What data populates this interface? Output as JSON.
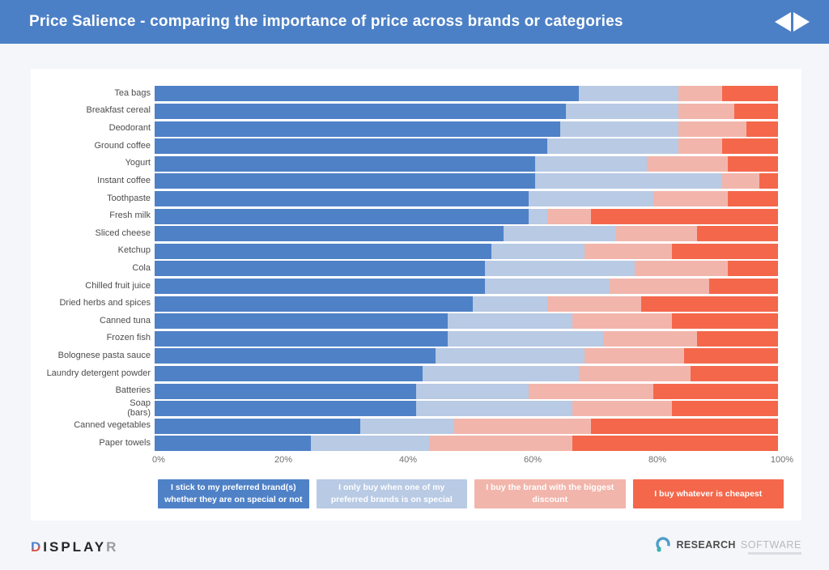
{
  "header": {
    "title": "Price Salience - comparing the importance of price across brands or categories",
    "nav": {
      "previous_icon": "triangle-left",
      "next_icon": "triangle-right"
    }
  },
  "colors": {
    "header_background": "#4c80c6",
    "page_background": "#f5f6fa",
    "card_background": "#ffffff",
    "tick_label": "#6f6f6f",
    "category_label": "#4d4d4d"
  },
  "chart_data": {
    "type": "bar",
    "orientation": "horizontal",
    "stacked": true,
    "units": "percent",
    "xlim": [
      0,
      100
    ],
    "x_ticks": [
      "0%",
      "20%",
      "40%",
      "60%",
      "80%",
      "100%"
    ],
    "grid": false,
    "legend_position": "bottom",
    "categories": [
      "Tea bags",
      "Breakfast cereal",
      "Deodorant",
      "Ground coffee",
      "Yogurt",
      "Instant coffee",
      "Toothpaste",
      "Fresh milk",
      "Sliced cheese",
      "Ketchup",
      "Cola",
      "Chilled fruit juice",
      "Dried herbs and spices",
      "Canned tuna",
      "Frozen fish",
      "Bolognese pasta sauce",
      "Laundry detergent powder",
      "Batteries",
      "Soap\n(bars)",
      "Canned vegetables",
      "Paper towels"
    ],
    "series": [
      {
        "name": "I stick to my preferred brand(s) whether they are on special or not",
        "color": "#4f81c7",
        "values": [
          68,
          66,
          65,
          63,
          61,
          61,
          60,
          60,
          56,
          54,
          53,
          53,
          51,
          47,
          47,
          45,
          43,
          42,
          42,
          33,
          25
        ]
      },
      {
        "name": "I only buy when one of my preferred brands is on special",
        "color": "#b8cae4",
        "values": [
          16,
          18,
          19,
          21,
          18,
          30,
          20,
          3,
          18,
          15,
          24,
          20,
          12,
          20,
          25,
          24,
          25,
          18,
          25,
          15,
          19
        ]
      },
      {
        "name": "I buy the brand with the biggest discount",
        "color": "#f2b5ab",
        "values": [
          7,
          9,
          11,
          7,
          13,
          6,
          12,
          7,
          13,
          14,
          15,
          16,
          15,
          16,
          15,
          16,
          18,
          20,
          16,
          22,
          23
        ]
      },
      {
        "name": "I buy whatever is cheapest",
        "color": "#f4674b",
        "values": [
          9,
          7,
          5,
          9,
          8,
          3,
          8,
          30,
          13,
          17,
          8,
          11,
          22,
          17,
          13,
          15,
          14,
          20,
          17,
          30,
          33
        ]
      }
    ]
  },
  "footer": {
    "displayr": {
      "first_letter": "D",
      "middle": "ISPLAY",
      "last_letter": "R"
    },
    "researchsoftware": {
      "bold": "RESEARCH",
      "light": "SOFTWARE"
    }
  }
}
